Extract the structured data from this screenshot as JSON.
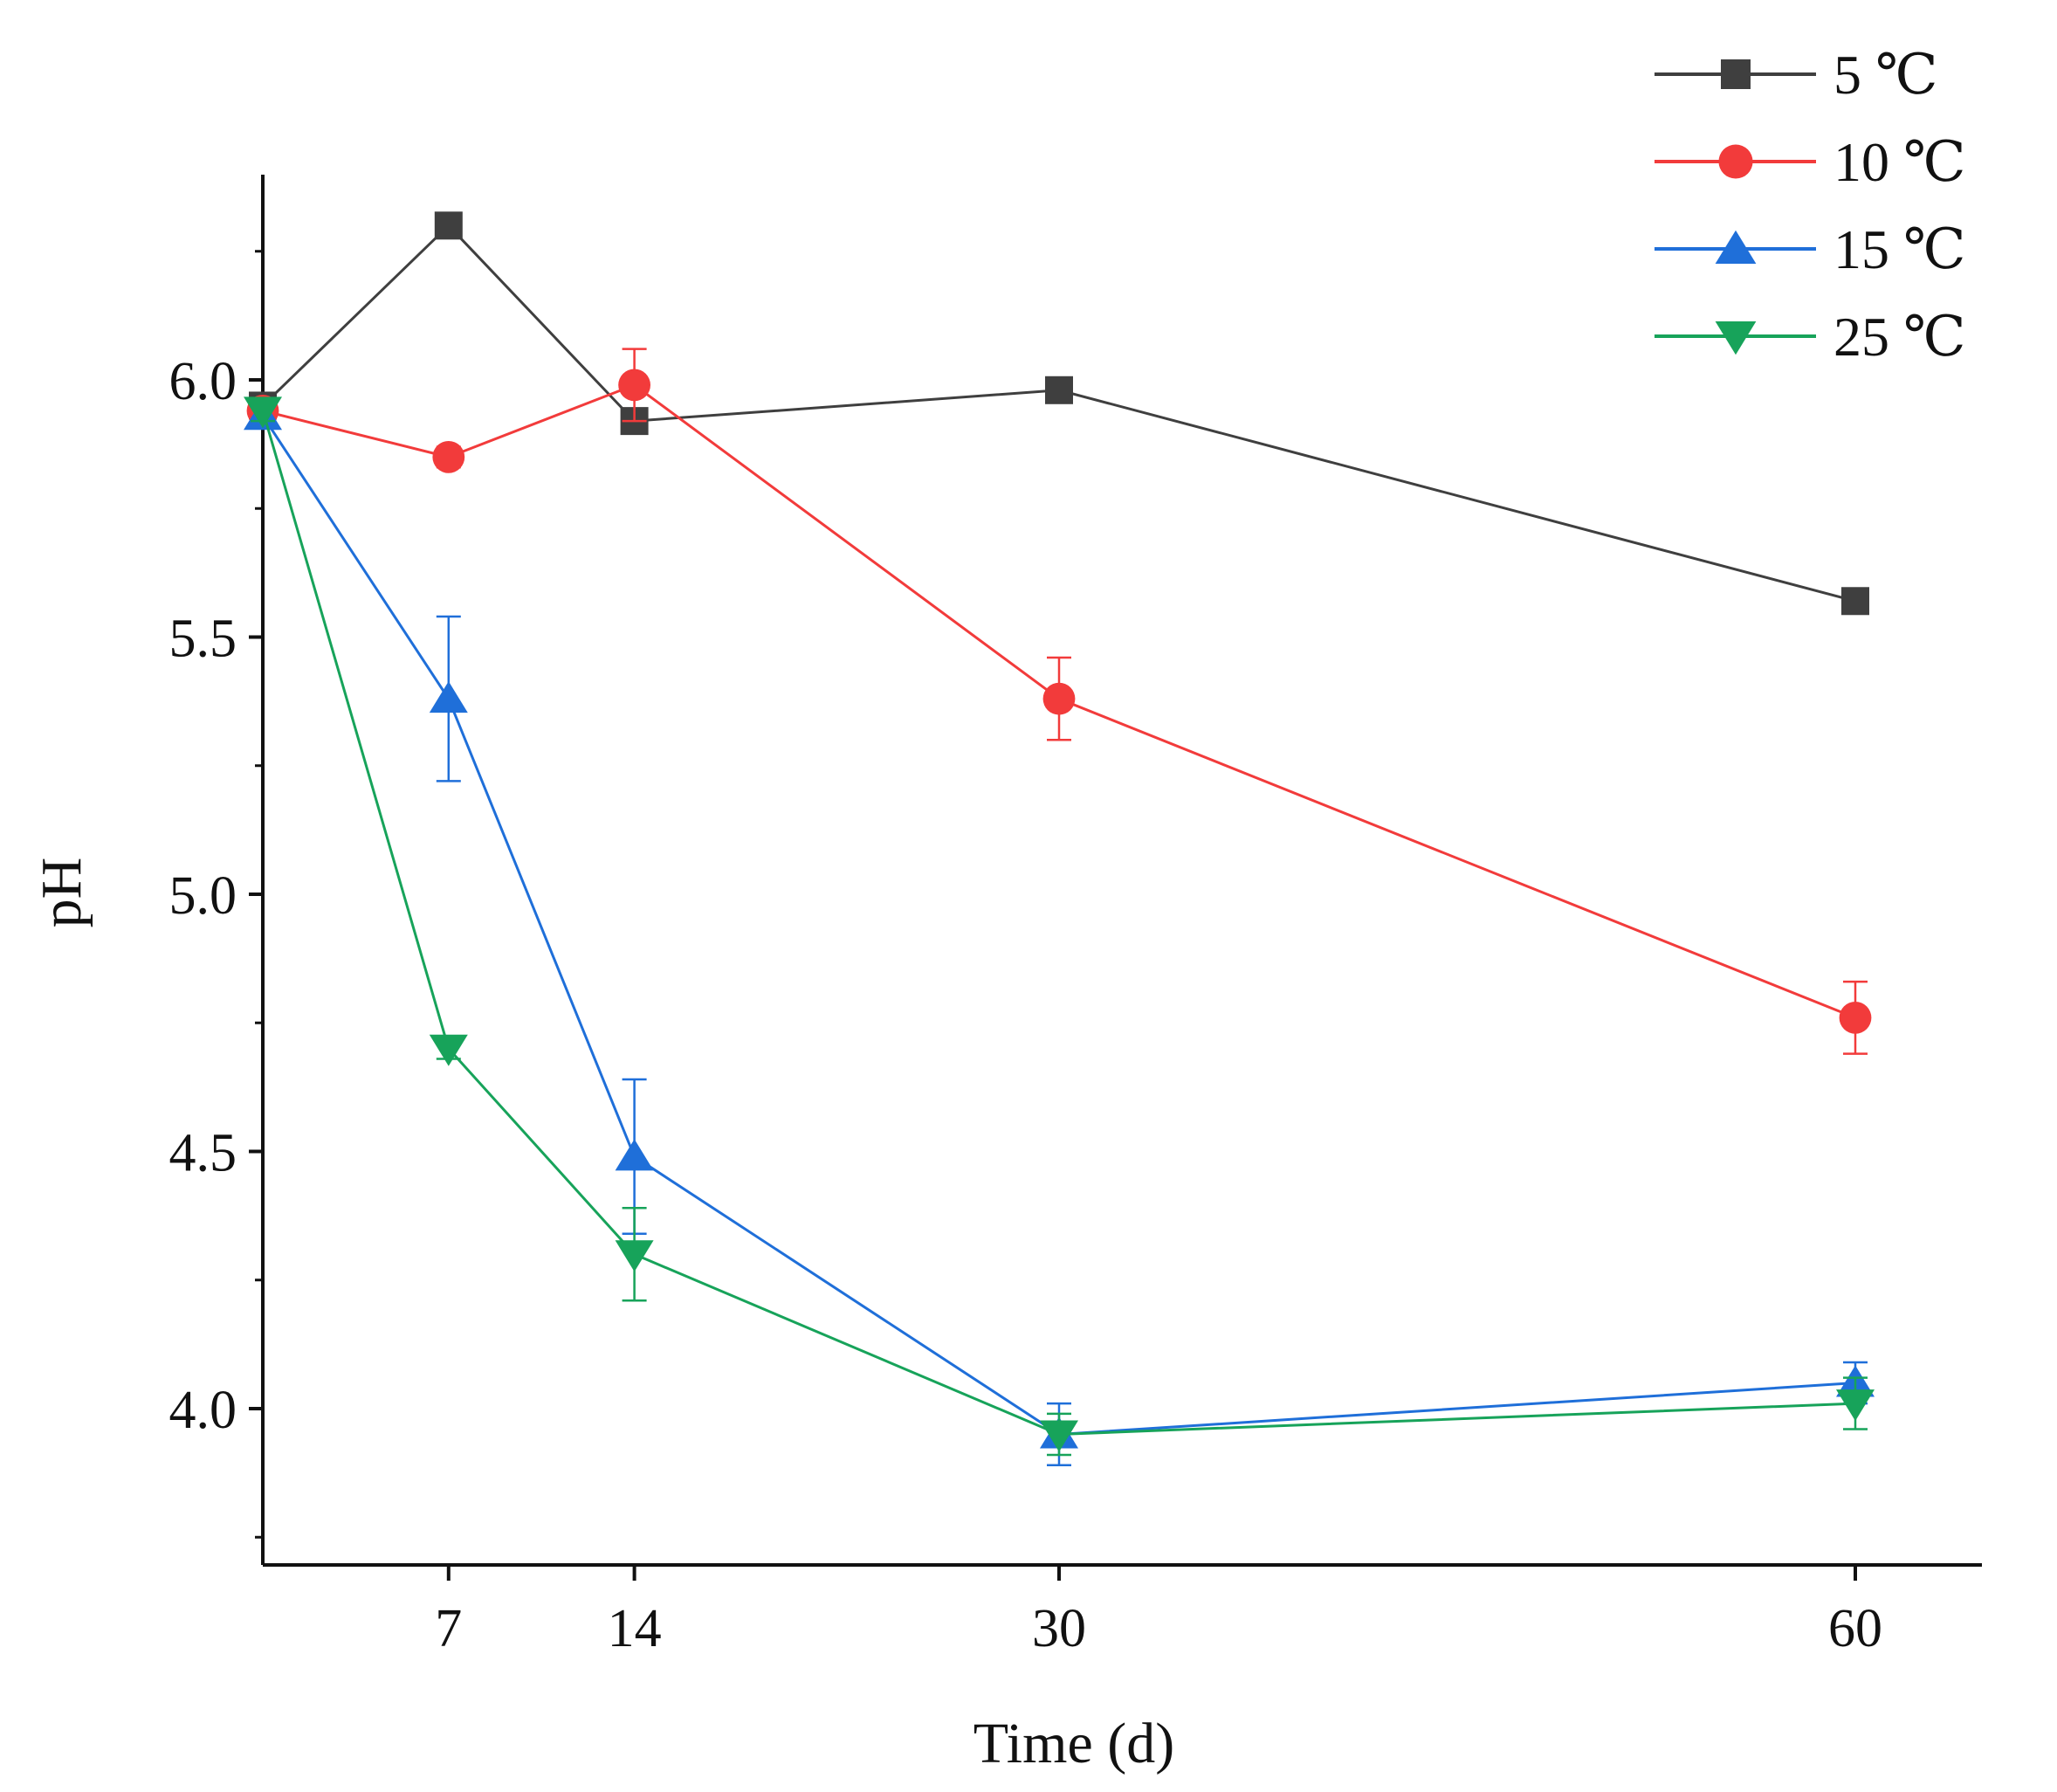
{
  "chart_data": {
    "type": "line",
    "title": "",
    "xlabel": "Time (d)",
    "ylabel": "pH",
    "x": [
      0,
      7,
      14,
      30,
      60
    ],
    "xticks": [
      7,
      14,
      30,
      60
    ],
    "xtick_labels": [
      "7",
      "14",
      "30",
      "60"
    ],
    "xlim": [
      0,
      65
    ],
    "ylim": [
      3.7,
      6.45
    ],
    "yticks_major": [
      4.0,
      4.5,
      5.0,
      5.5,
      6.0
    ],
    "ytick_labels": [
      "4.0",
      "4.5",
      "5.0",
      "5.5",
      "6.0"
    ],
    "yticks_minor": [
      3.75,
      4.25,
      4.75,
      5.25,
      5.75,
      6.25
    ],
    "grid": false,
    "legend_position": "top-right",
    "series": [
      {
        "name": "5 ℃",
        "color": "#3f3f3f",
        "marker": "square",
        "values": [
          5.95,
          6.3,
          5.92,
          5.98,
          5.57
        ],
        "errors": [
          0.02,
          0.02,
          0.02,
          0.02,
          0.02
        ]
      },
      {
        "name": "10 ℃",
        "color": "#f23b3b",
        "marker": "circle",
        "values": [
          5.94,
          5.85,
          5.99,
          5.38,
          4.76
        ],
        "errors": [
          0.02,
          0.02,
          0.07,
          0.08,
          0.07
        ]
      },
      {
        "name": "15 ℃",
        "color": "#1f6fd9",
        "marker": "triangle-up",
        "values": [
          5.93,
          5.38,
          4.49,
          3.95,
          4.05
        ],
        "errors": [
          0.02,
          0.16,
          0.15,
          0.06,
          0.04
        ]
      },
      {
        "name": "25 ℃",
        "color": "#17a35a",
        "marker": "triangle-down",
        "values": [
          5.94,
          4.7,
          4.3,
          3.95,
          4.01
        ],
        "errors": [
          0.02,
          0.02,
          0.09,
          0.04,
          0.05
        ]
      }
    ]
  }
}
